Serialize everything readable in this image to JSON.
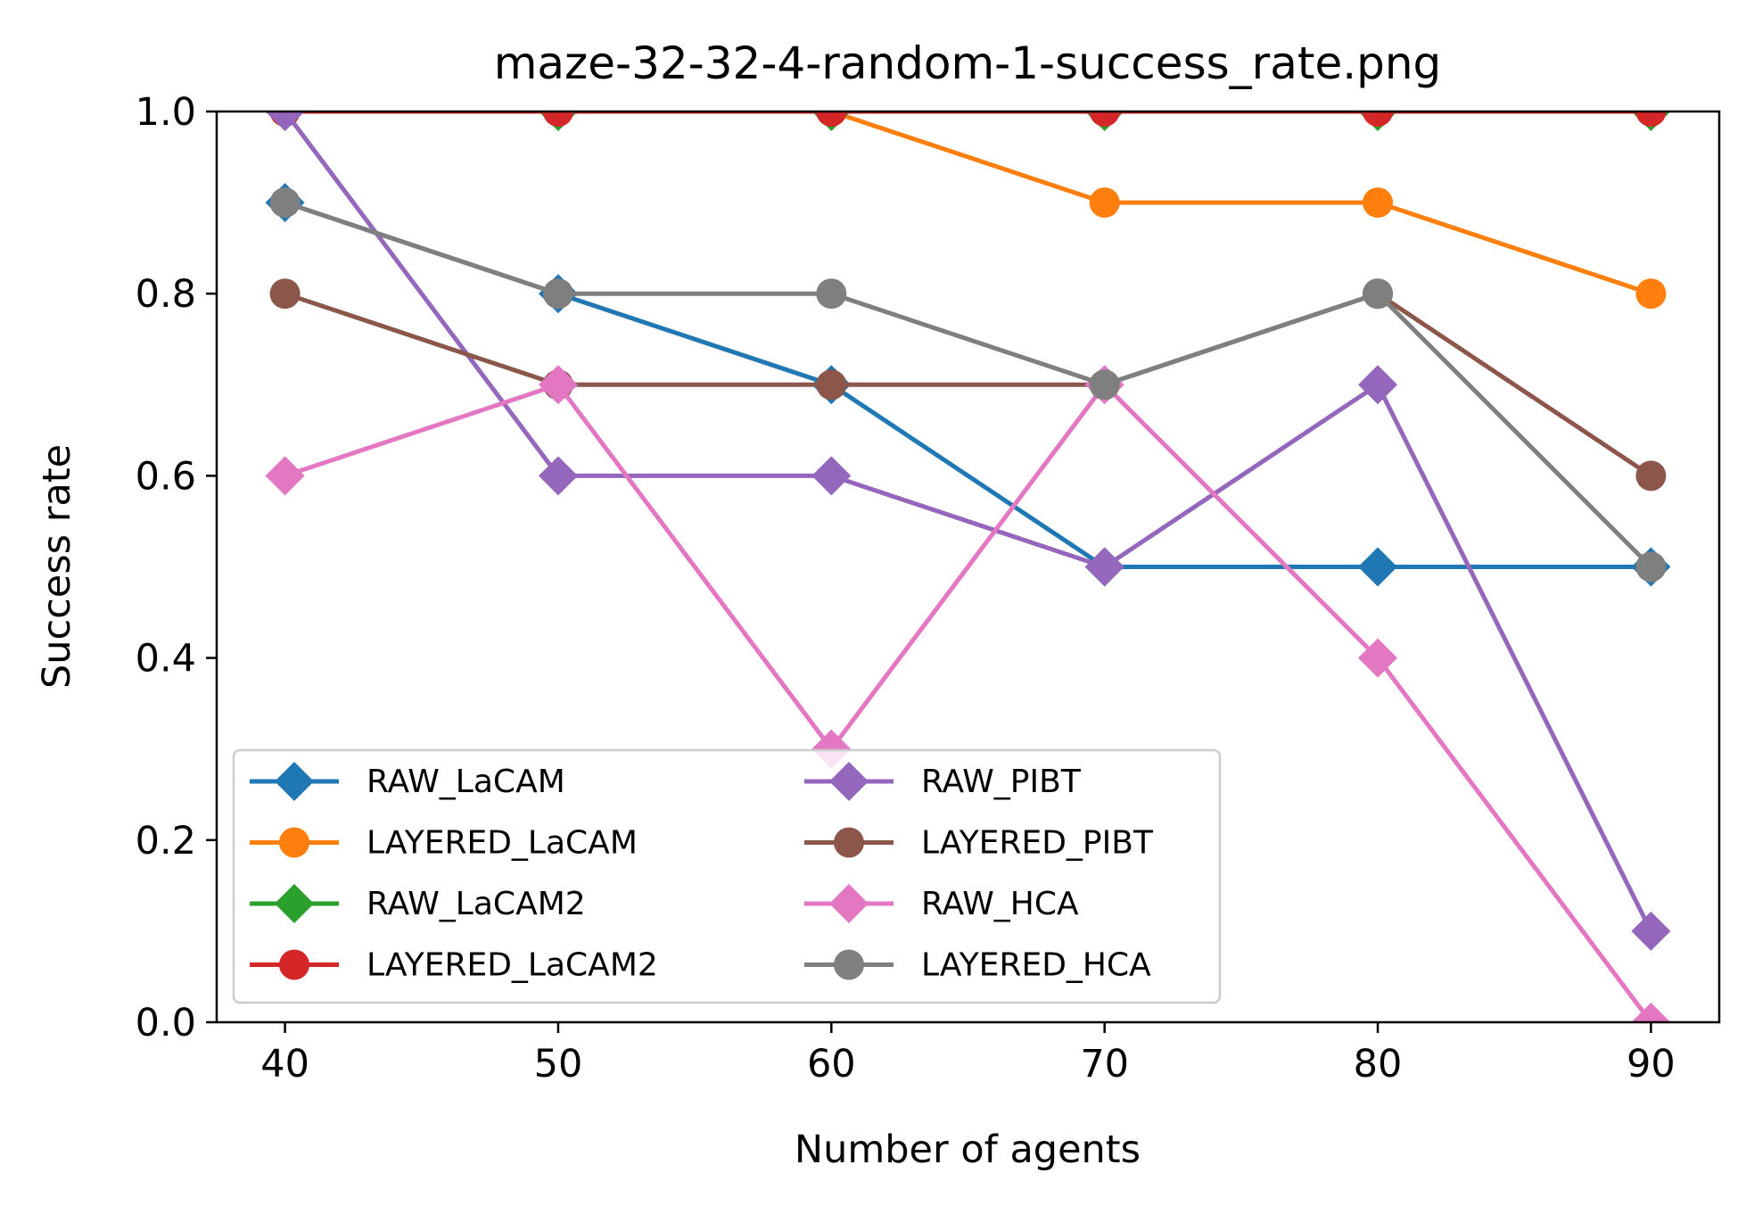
{
  "chart_data": {
    "type": "line",
    "title": "maze-32-32-4-random-1-success_rate.png",
    "xlabel": "Number of agents",
    "ylabel": "Success rate",
    "x": [
      40,
      50,
      60,
      70,
      80,
      90
    ],
    "xlim": [
      37.5,
      92.5
    ],
    "ylim": [
      0.0,
      1.0
    ],
    "xticks": [
      "40",
      "50",
      "60",
      "70",
      "80",
      "90"
    ],
    "yticks": [
      "0.0",
      "0.2",
      "0.4",
      "0.6",
      "0.8",
      "1.0"
    ],
    "grid": false,
    "legend_position": "lower-left",
    "legend_columns": 2,
    "series": [
      {
        "name": "RAW_LaCAM",
        "color": "#1f77b4",
        "marker": "diamond",
        "values": [
          0.9,
          0.8,
          0.7,
          0.5,
          0.5,
          0.5
        ]
      },
      {
        "name": "LAYERED_LaCAM",
        "color": "#ff7f0e",
        "marker": "circle",
        "values": [
          1.0,
          1.0,
          1.0,
          0.9,
          0.9,
          0.8
        ]
      },
      {
        "name": "RAW_LaCAM2",
        "color": "#2ca02c",
        "marker": "diamond",
        "values": [
          1.0,
          1.0,
          1.0,
          1.0,
          1.0,
          1.0
        ]
      },
      {
        "name": "LAYERED_LaCAM2",
        "color": "#d62728",
        "marker": "circle",
        "values": [
          1.0,
          1.0,
          1.0,
          1.0,
          1.0,
          1.0
        ]
      },
      {
        "name": "RAW_PIBT",
        "color": "#9467bd",
        "marker": "diamond",
        "values": [
          1.0,
          0.6,
          0.6,
          0.5,
          0.7,
          0.1
        ]
      },
      {
        "name": "LAYERED_PIBT",
        "color": "#8c564b",
        "marker": "circle",
        "values": [
          0.8,
          0.7,
          0.7,
          0.7,
          0.8,
          0.6
        ]
      },
      {
        "name": "RAW_HCA",
        "color": "#e377c2",
        "marker": "diamond",
        "values": [
          0.6,
          0.7,
          0.3,
          0.7,
          0.4,
          0.0
        ]
      },
      {
        "name": "LAYERED_HCA",
        "color": "#7f7f7f",
        "marker": "circle",
        "values": [
          0.9,
          0.8,
          0.8,
          0.7,
          0.8,
          0.5
        ]
      }
    ]
  }
}
